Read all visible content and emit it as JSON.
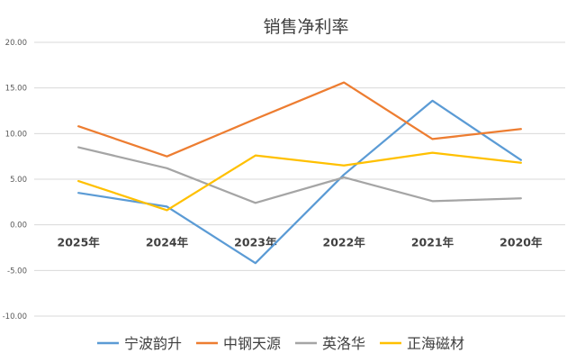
{
  "chart_data": {
    "type": "line",
    "title": "销售净利率",
    "categories": [
      "2025年",
      "2024年",
      "2023年",
      "2022年",
      "2021年",
      "2020年"
    ],
    "ylim": [
      -10,
      20
    ],
    "yticks": [
      "20.00",
      "15.00",
      "10.00",
      "5.00",
      "0.00",
      "-5.00",
      "-10.00"
    ],
    "ytick_values": [
      20,
      15,
      10,
      5,
      0,
      -5,
      -10
    ],
    "grid": true,
    "legend_position": "bottom",
    "series": [
      {
        "name": "宁波韵升",
        "color": "#5B9BD5",
        "values": [
          3.5,
          2.0,
          -4.2,
          5.5,
          13.6,
          7.1
        ]
      },
      {
        "name": "中钢天源",
        "color": "#ED7D31",
        "values": [
          10.8,
          7.5,
          11.6,
          15.6,
          9.4,
          10.5
        ]
      },
      {
        "name": "英洛华",
        "color": "#A5A5A5",
        "values": [
          8.5,
          6.2,
          2.4,
          5.2,
          2.6,
          2.9
        ]
      },
      {
        "name": "正海磁材",
        "color": "#FFC000",
        "values": [
          4.8,
          1.6,
          7.6,
          6.5,
          7.9,
          6.8
        ]
      }
    ]
  }
}
